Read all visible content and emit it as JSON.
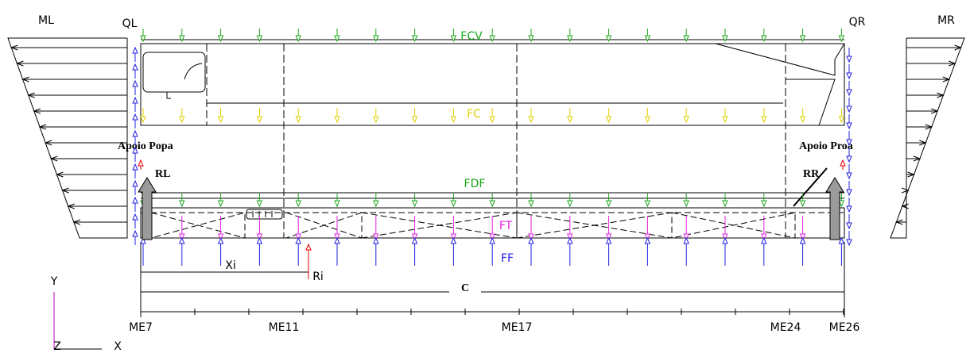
{
  "moments": {
    "left": "ML",
    "right": "MR"
  },
  "shears": {
    "left": "QL",
    "right": "QR"
  },
  "loads": {
    "fcv": "FCV",
    "fc": "FC",
    "fdf": "FDF",
    "ft": "FT",
    "ff": "FF"
  },
  "supports": {
    "aft_label": "Apoio Popa",
    "aft_reaction": "RL",
    "fwd_label": "Apoio Proa",
    "fwd_reaction": "RR"
  },
  "point_load": {
    "distance": "Xi",
    "reaction": "Ri"
  },
  "length": "C",
  "stations": [
    "ME7",
    "ME11",
    "ME17",
    "ME24",
    "ME26"
  ],
  "axes": {
    "y": "Y",
    "z": "Z",
    "x": "X"
  }
}
